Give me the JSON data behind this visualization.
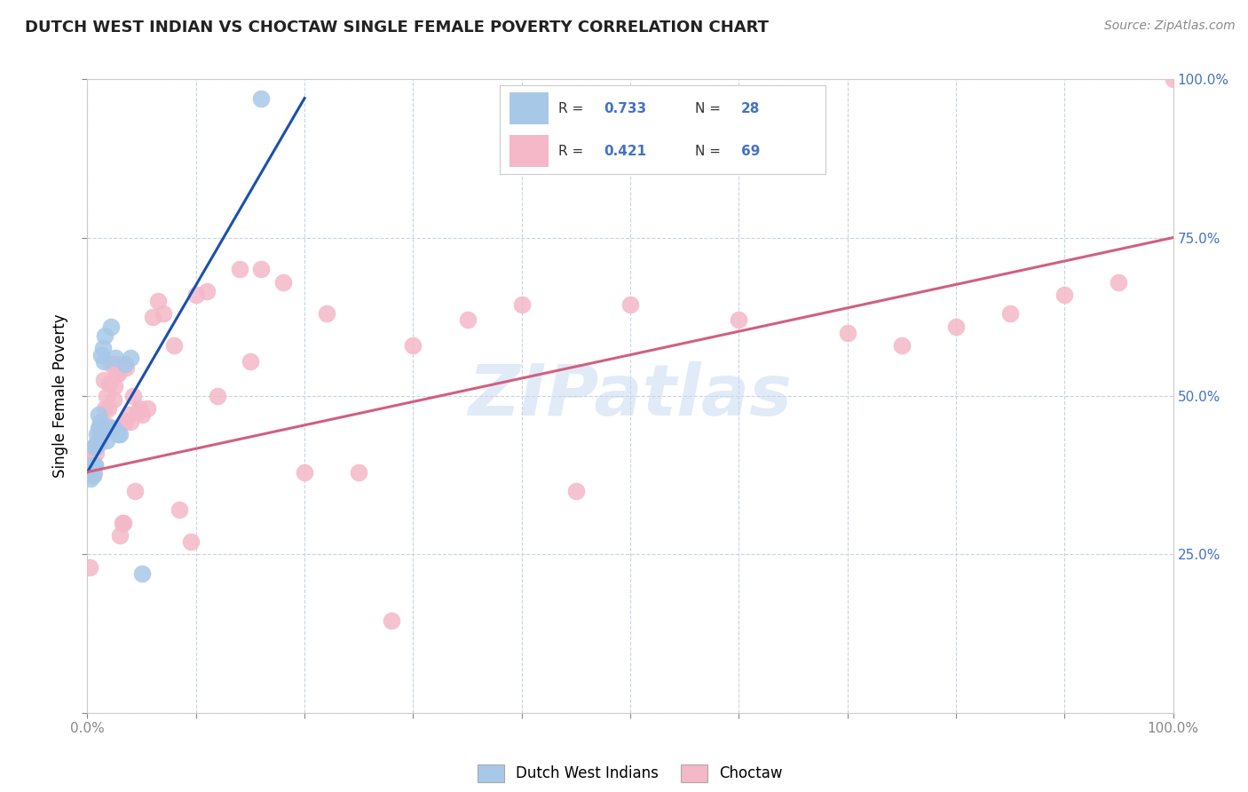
{
  "title": "DUTCH WEST INDIAN VS CHOCTAW SINGLE FEMALE POVERTY CORRELATION CHART",
  "source": "Source: ZipAtlas.com",
  "ylabel_label": "Single Female Poverty",
  "watermark": "ZIPatlas",
  "legend_blue_label": "Dutch West Indians",
  "legend_pink_label": "Choctaw",
  "blue_R": "0.733",
  "blue_N": "28",
  "pink_R": "0.421",
  "pink_N": "69",
  "xlim": [
    0.0,
    1.0
  ],
  "ylim": [
    0.0,
    1.0
  ],
  "blue_color": "#a8c8e8",
  "pink_color": "#f4b8c8",
  "blue_line_color": "#1a50b0",
  "pink_line_color": "#d06080",
  "right_tick_color": "#4472c4",
  "background_color": "#ffffff",
  "grid_color": "#c8d4e0",
  "blue_scatter_x": [
    0.003,
    0.004,
    0.005,
    0.005,
    0.006,
    0.007,
    0.008,
    0.008,
    0.009,
    0.01,
    0.01,
    0.011,
    0.012,
    0.013,
    0.014,
    0.015,
    0.016,
    0.018,
    0.02,
    0.022,
    0.024,
    0.026,
    0.028,
    0.03,
    0.035,
    0.04,
    0.05,
    0.16
  ],
  "blue_scatter_y": [
    0.37,
    0.38,
    0.375,
    0.39,
    0.42,
    0.39,
    0.42,
    0.425,
    0.44,
    0.45,
    0.47,
    0.45,
    0.46,
    0.565,
    0.575,
    0.555,
    0.595,
    0.43,
    0.45,
    0.61,
    0.45,
    0.56,
    0.44,
    0.44,
    0.55,
    0.56,
    0.22,
    0.97
  ],
  "pink_scatter_x": [
    0.002,
    0.003,
    0.004,
    0.005,
    0.006,
    0.007,
    0.008,
    0.009,
    0.01,
    0.011,
    0.012,
    0.013,
    0.014,
    0.015,
    0.016,
    0.017,
    0.018,
    0.019,
    0.02,
    0.022,
    0.024,
    0.025,
    0.026,
    0.027,
    0.028,
    0.03,
    0.032,
    0.033,
    0.034,
    0.035,
    0.036,
    0.038,
    0.04,
    0.042,
    0.044,
    0.046,
    0.048,
    0.05,
    0.055,
    0.06,
    0.065,
    0.07,
    0.08,
    0.085,
    0.095,
    0.1,
    0.11,
    0.12,
    0.14,
    0.15,
    0.16,
    0.18,
    0.2,
    0.22,
    0.25,
    0.28,
    0.3,
    0.35,
    0.4,
    0.45,
    0.5,
    0.6,
    0.7,
    0.75,
    0.8,
    0.85,
    0.9,
    0.95,
    1.0
  ],
  "pink_scatter_y": [
    0.23,
    0.39,
    0.4,
    0.375,
    0.38,
    0.39,
    0.41,
    0.425,
    0.425,
    0.44,
    0.45,
    0.435,
    0.45,
    0.525,
    0.48,
    0.455,
    0.5,
    0.48,
    0.52,
    0.55,
    0.495,
    0.515,
    0.55,
    0.535,
    0.535,
    0.28,
    0.3,
    0.3,
    0.46,
    0.46,
    0.545,
    0.47,
    0.46,
    0.5,
    0.35,
    0.475,
    0.48,
    0.47,
    0.48,
    0.625,
    0.65,
    0.63,
    0.58,
    0.32,
    0.27,
    0.66,
    0.665,
    0.5,
    0.7,
    0.555,
    0.7,
    0.68,
    0.38,
    0.63,
    0.38,
    0.145,
    0.58,
    0.62,
    0.645,
    0.35,
    0.645,
    0.62,
    0.6,
    0.58,
    0.61,
    0.63,
    0.66,
    0.68,
    1.0
  ],
  "blue_line_x": [
    0.0,
    0.2
  ],
  "blue_line_y": [
    0.38,
    0.97
  ],
  "pink_line_x": [
    0.0,
    1.0
  ],
  "pink_line_y": [
    0.38,
    0.75
  ]
}
